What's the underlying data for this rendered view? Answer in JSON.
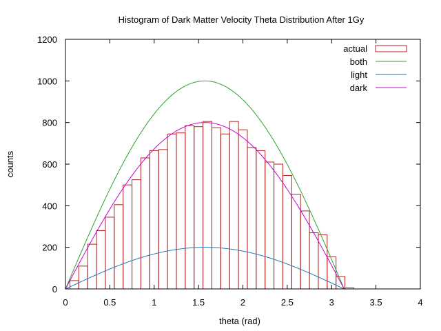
{
  "chart_data": {
    "type": "bar",
    "title": "Histogram of Dark Matter Velocity Theta Distribution After 1Gy",
    "xlabel": "theta (rad)",
    "ylabel": "counts",
    "xlim": [
      0,
      4
    ],
    "ylim": [
      0,
      1200
    ],
    "x_ticks": [
      0,
      0.5,
      1,
      1.5,
      2,
      2.5,
      3,
      3.5,
      4
    ],
    "x_tick_labels": [
      "0",
      "0.5",
      "1",
      "1.5",
      "2",
      "2.5",
      "3",
      "3.5",
      "4"
    ],
    "y_ticks": [
      0,
      200,
      400,
      600,
      800,
      1000,
      1200
    ],
    "y_tick_labels": [
      "0",
      "200",
      "400",
      "600",
      "800",
      "1000",
      "1200"
    ],
    "legend_position": "top-right",
    "histogram": {
      "name": "actual",
      "color": "#b22222",
      "bin_width": 0.1,
      "bin_starts": [
        0.05,
        0.15,
        0.25,
        0.35,
        0.45,
        0.55,
        0.65,
        0.75,
        0.85,
        0.95,
        1.05,
        1.15,
        1.25,
        1.35,
        1.45,
        1.55,
        1.65,
        1.75,
        1.85,
        1.95,
        2.05,
        2.15,
        2.25,
        2.35,
        2.45,
        2.55,
        2.65,
        2.75,
        2.85,
        2.95,
        3.05,
        3.15
      ],
      "values": [
        40,
        110,
        215,
        280,
        345,
        405,
        500,
        525,
        630,
        665,
        670,
        745,
        750,
        785,
        780,
        805,
        775,
        745,
        805,
        765,
        680,
        665,
        610,
        600,
        545,
        455,
        375,
        270,
        260,
        155,
        60,
        5
      ]
    },
    "series": [
      {
        "name": "both",
        "color": "#2ca02c",
        "function": "1000*sin(x)",
        "domain": [
          0,
          3.14159
        ]
      },
      {
        "name": "light",
        "color": "#1f77b4",
        "function": "200*sin(x)",
        "domain": [
          0,
          3.14159
        ]
      },
      {
        "name": "dark",
        "color": "#cc00cc",
        "function": "800*sin(x)",
        "domain": [
          0,
          3.14159
        ]
      }
    ]
  }
}
